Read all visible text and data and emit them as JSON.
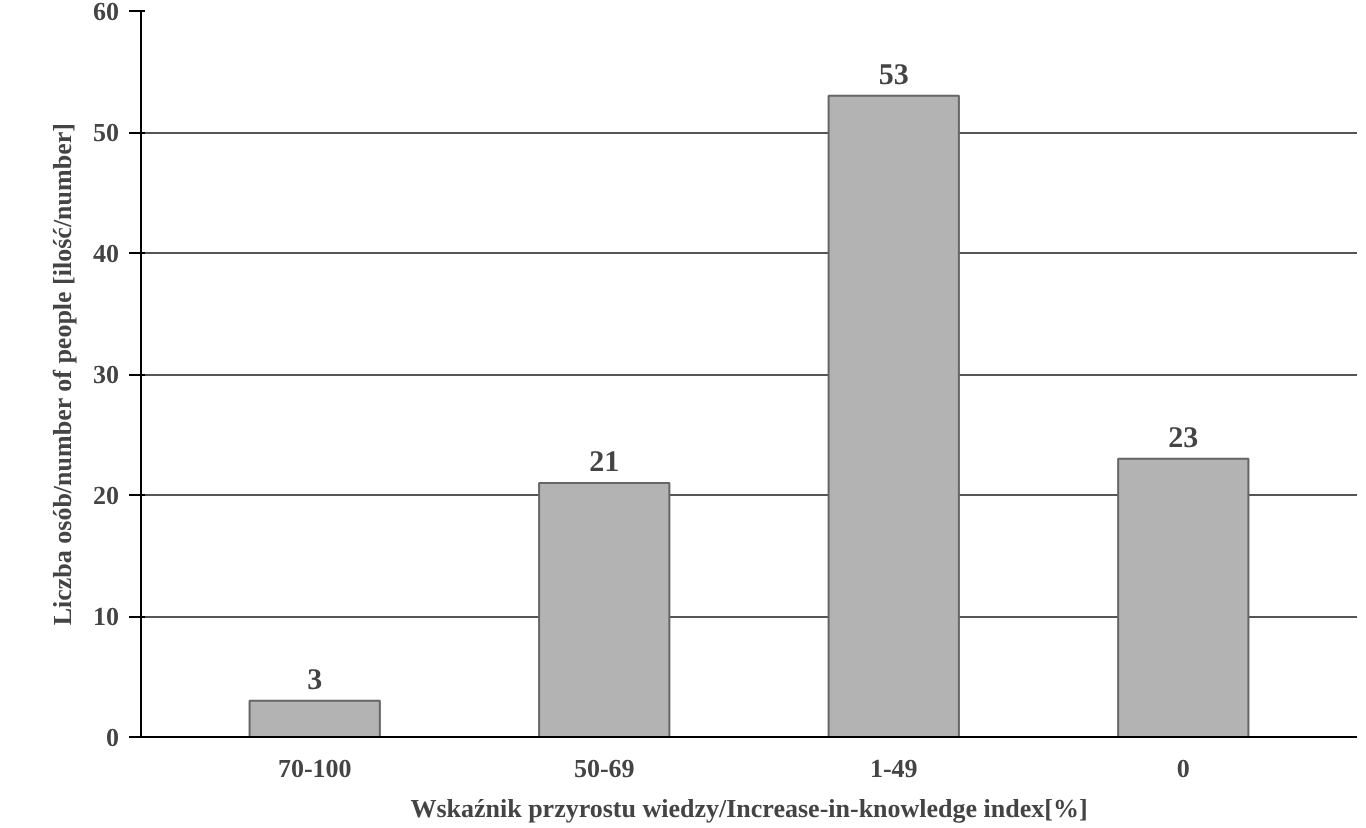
{
  "chart_data": {
    "type": "bar",
    "categories": [
      "70-100",
      "50-69",
      "1-49",
      "0"
    ],
    "values": [
      3,
      21,
      53,
      23
    ],
    "color": "#b3b3b3",
    "ylim": [
      0,
      60
    ],
    "yticks": [
      0,
      10,
      20,
      30,
      40,
      50,
      60
    ],
    "ylabel": "Liczba osób/number of people [ilość/number]",
    "xlabel": "Wskaźnik przyrostu wiedzy/Increase-in-knowledge index[%]",
    "data_labels": true,
    "grid": "y"
  }
}
